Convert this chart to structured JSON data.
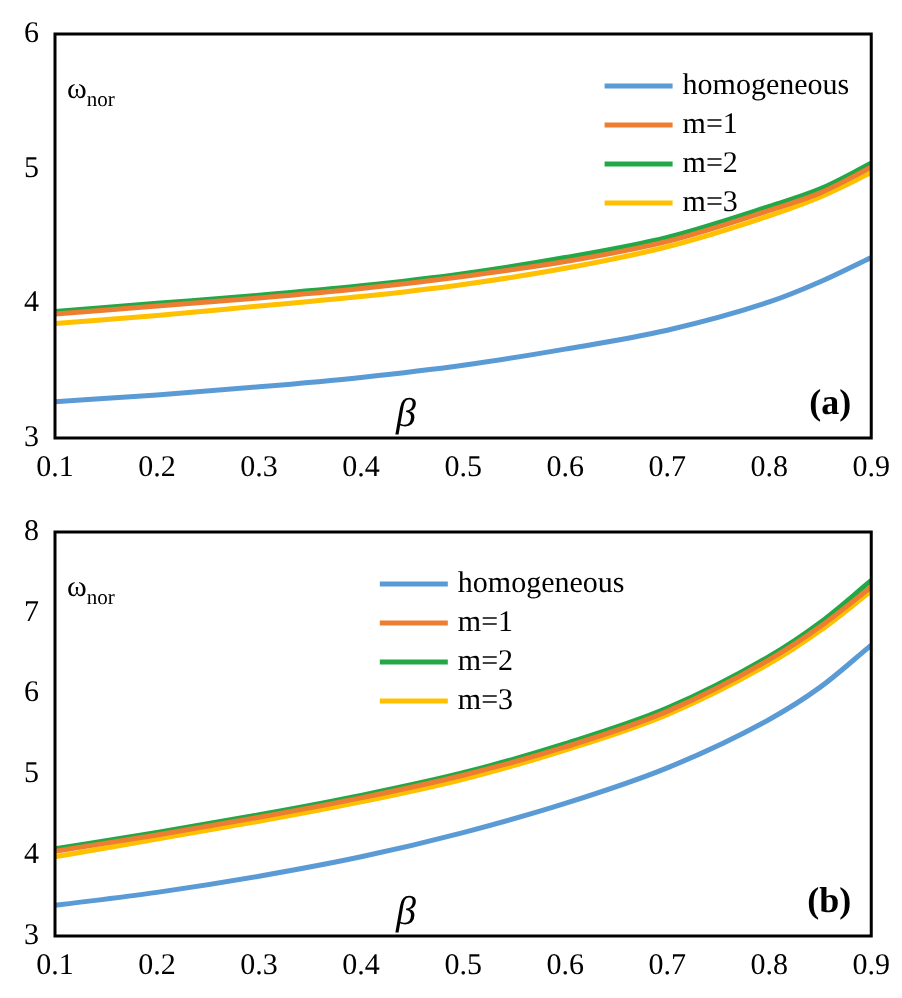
{
  "chart_data": [
    {
      "type": "line",
      "xlabel": "β",
      "ylabel": "ω$_{nor}$",
      "annotations": [
        "(a)"
      ],
      "x": [
        0.1,
        0.2,
        0.3,
        0.4,
        0.5,
        0.6,
        0.7,
        0.8,
        0.85,
        0.9
      ],
      "series": [
        {
          "name": "homogeneous",
          "color": "#5b9bd5",
          "values": [
            3.27,
            3.32,
            3.38,
            3.45,
            3.54,
            3.66,
            3.8,
            4.01,
            4.16,
            4.34
          ]
        },
        {
          "name": "m=1",
          "color": "#ed7d31",
          "values": [
            3.92,
            3.98,
            4.04,
            4.11,
            4.2,
            4.31,
            4.46,
            4.69,
            4.82,
            5.01
          ]
        },
        {
          "name": "m=2",
          "color": "#22a846",
          "values": [
            3.94,
            4.0,
            4.06,
            4.13,
            4.22,
            4.34,
            4.49,
            4.72,
            4.85,
            5.04
          ]
        },
        {
          "name": "m=3",
          "color": "#ffc000",
          "values": [
            3.85,
            3.91,
            3.98,
            4.05,
            4.14,
            4.26,
            4.42,
            4.65,
            4.79,
            4.97
          ]
        }
      ],
      "xlim": [
        0.1,
        0.9
      ],
      "xticks": [
        0.1,
        0.2,
        0.3,
        0.4,
        0.5,
        0.6,
        0.7,
        0.8,
        0.9
      ],
      "ylim": [
        3,
        6
      ],
      "yticks": [
        3,
        4,
        5,
        6
      ],
      "grid": false,
      "legend": "top right",
      "marker": "none",
      "line_style": "solid"
    },
    {
      "type": "line",
      "xlabel": "β",
      "ylabel": "ω$_{nor}$",
      "annotations": [
        "(b)"
      ],
      "x": [
        0.1,
        0.2,
        0.3,
        0.4,
        0.5,
        0.6,
        0.7,
        0.8,
        0.85,
        0.9
      ],
      "series": [
        {
          "name": "homogeneous",
          "color": "#5b9bd5",
          "values": [
            3.38,
            3.54,
            3.74,
            3.98,
            4.28,
            4.64,
            5.08,
            5.68,
            6.08,
            6.6
          ]
        },
        {
          "name": "m=1",
          "color": "#ed7d31",
          "values": [
            4.05,
            4.25,
            4.47,
            4.71,
            4.99,
            5.34,
            5.78,
            6.42,
            6.83,
            7.32
          ]
        },
        {
          "name": "m=2",
          "color": "#22a846",
          "values": [
            4.08,
            4.28,
            4.5,
            4.74,
            5.02,
            5.38,
            5.82,
            6.46,
            6.88,
            7.4
          ]
        },
        {
          "name": "m=3",
          "color": "#ffc000",
          "values": [
            3.98,
            4.2,
            4.42,
            4.66,
            4.94,
            5.3,
            5.74,
            6.37,
            6.78,
            7.27
          ]
        }
      ],
      "xlim": [
        0.1,
        0.9
      ],
      "xticks": [
        0.1,
        0.2,
        0.3,
        0.4,
        0.5,
        0.6,
        0.7,
        0.8,
        0.9
      ],
      "ylim": [
        3,
        8
      ],
      "yticks": [
        3,
        4,
        5,
        6,
        7,
        8
      ],
      "grid": false,
      "legend": "top",
      "marker": "none",
      "line_style": "solid"
    }
  ]
}
